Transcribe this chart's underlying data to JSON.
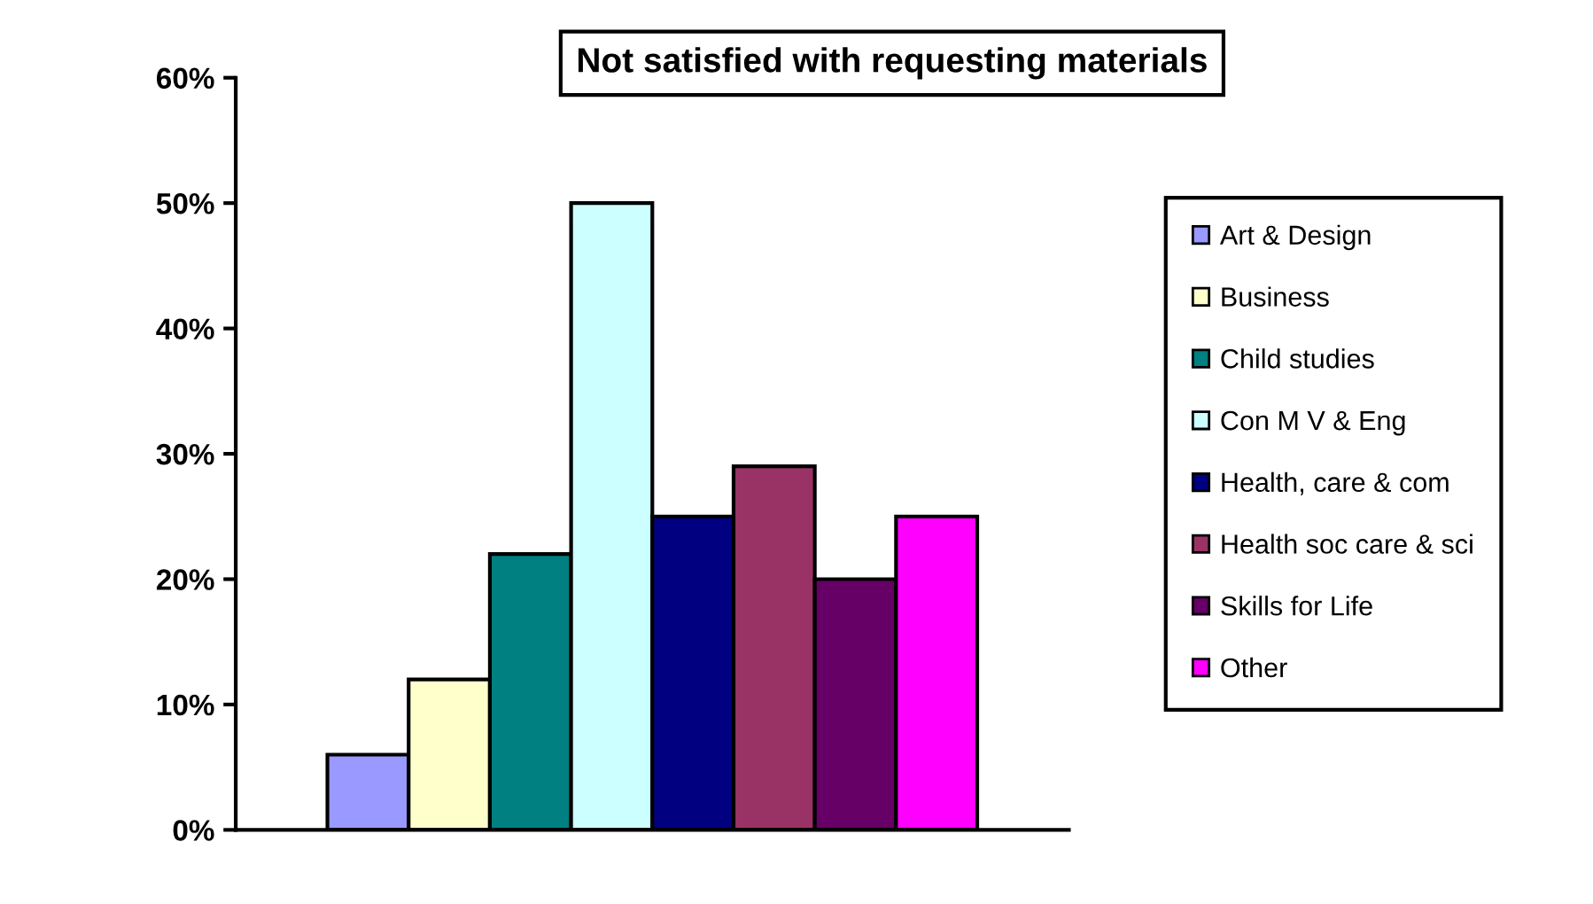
{
  "chart_data": {
    "type": "bar",
    "title": "Not satisfied with requesting materials",
    "categories": [
      null
    ],
    "series": [
      {
        "name": "Art & Design",
        "color": "#9999ff",
        "values": [
          6
        ]
      },
      {
        "name": "Business",
        "color": "#ffffcc",
        "values": [
          12
        ]
      },
      {
        "name": "Child studies",
        "color": "#008080",
        "values": [
          22
        ]
      },
      {
        "name": "Con M V & Eng",
        "color": "#ccffff",
        "values": [
          50
        ]
      },
      {
        "name": "Health, care & com",
        "color": "#000080",
        "values": [
          25
        ]
      },
      {
        "name": "Health soc care & sci",
        "color": "#993366",
        "values": [
          29
        ]
      },
      {
        "name": "Skills for Life",
        "color": "#660066",
        "values": [
          20
        ]
      },
      {
        "name": "Other",
        "color": "#ff00ff",
        "values": [
          25
        ]
      }
    ],
    "ylim": [
      0,
      60
    ],
    "yticks": [
      {
        "value": 0,
        "label": "0%"
      },
      {
        "value": 10,
        "label": "10%"
      },
      {
        "value": 20,
        "label": "20%"
      },
      {
        "value": 30,
        "label": "30%"
      },
      {
        "value": 40,
        "label": "40%"
      },
      {
        "value": 50,
        "label": "50%"
      },
      {
        "value": 60,
        "label": "60%"
      }
    ],
    "grid": false,
    "legend": "right"
  }
}
